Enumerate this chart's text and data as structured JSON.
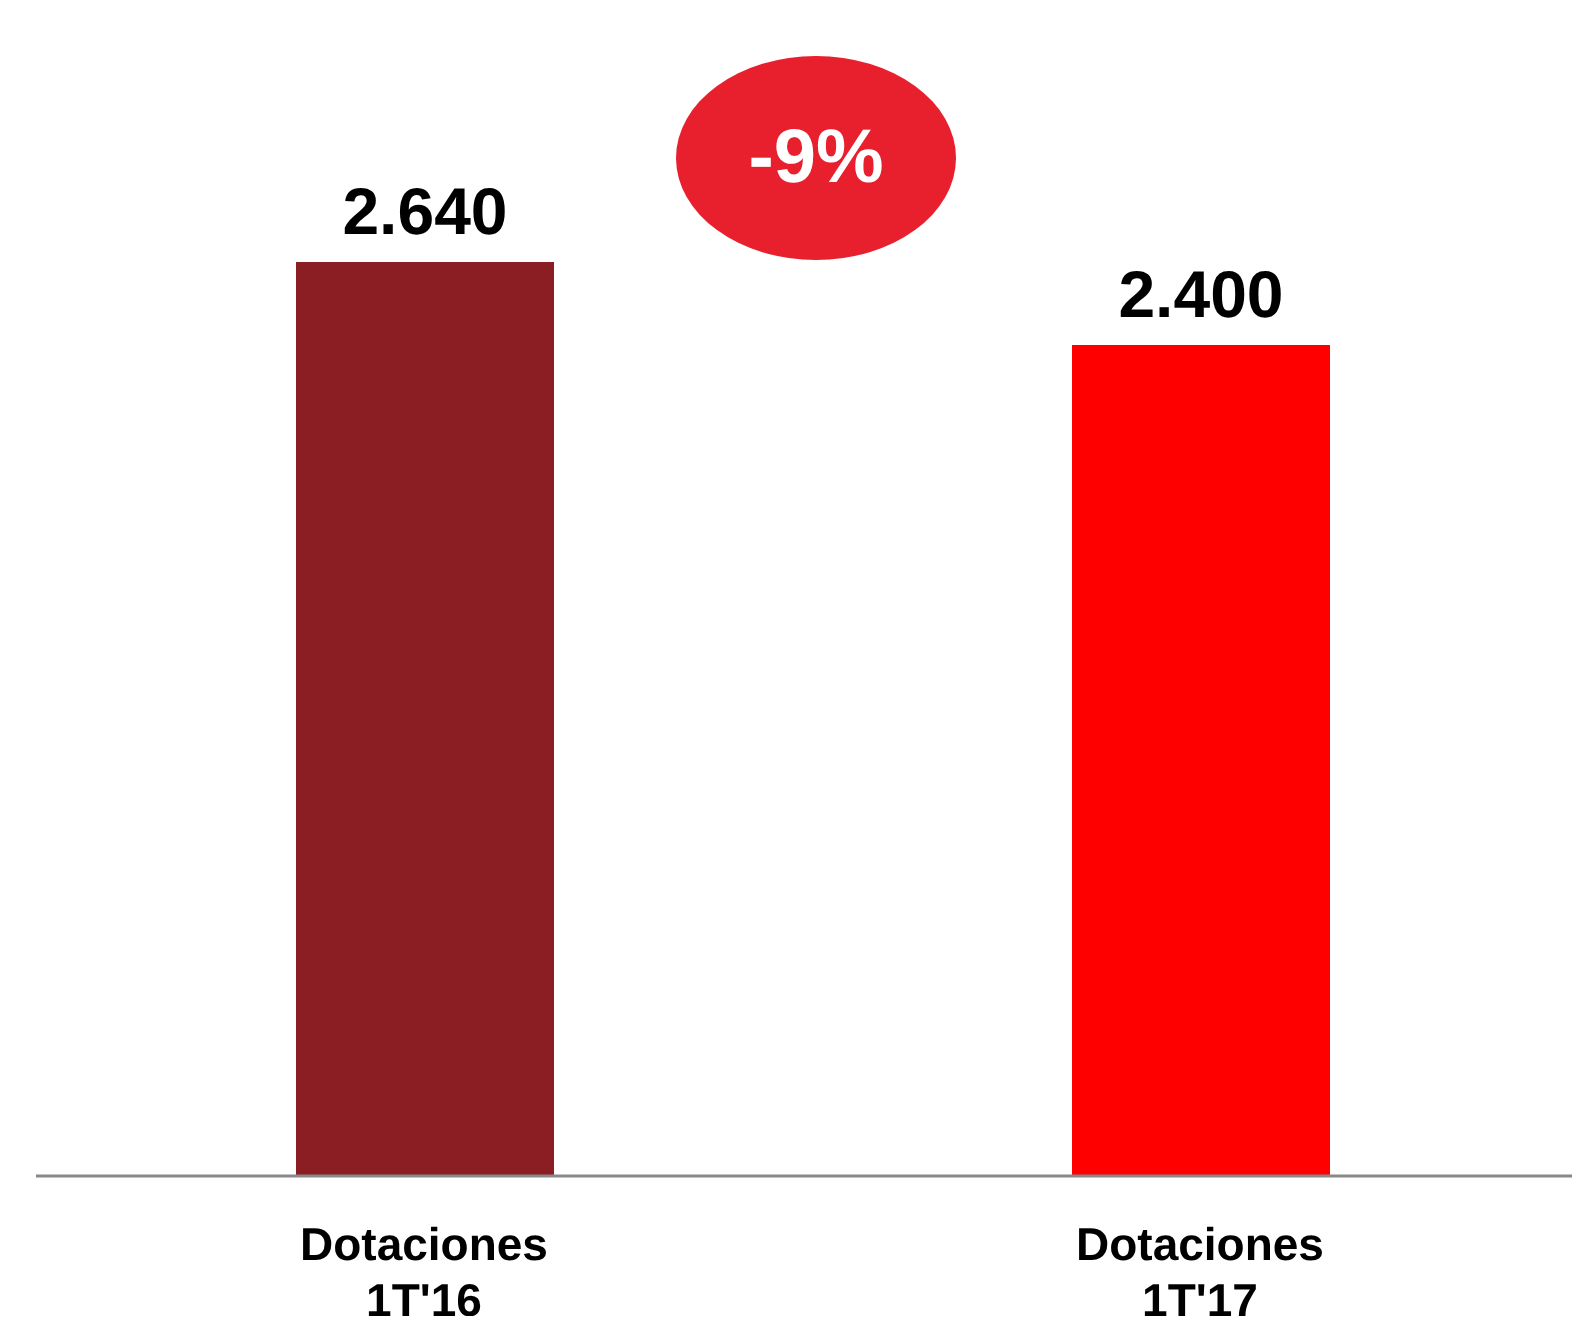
{
  "chart_data": {
    "type": "bar",
    "categories": [
      "Dotaciones 1T'16",
      "Dotaciones 1T'17"
    ],
    "values": [
      2640,
      2400
    ],
    "colors": [
      "#8b1e23",
      "#ff0000"
    ],
    "value_labels": [
      "2.640",
      "2.400"
    ],
    "annotations": [
      "-9%"
    ]
  }
}
